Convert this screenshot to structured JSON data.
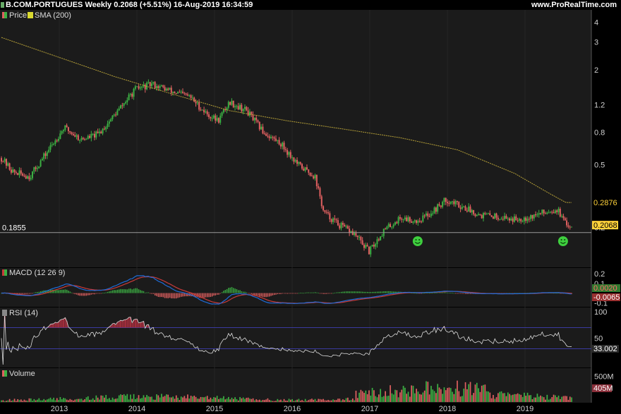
{
  "header": {
    "title": "B.COM.PORTUGUES Weekly 0.2068 (+5.51%) 16-Aug-2019 16:34:59",
    "site": "www.ProRealTime.com"
  },
  "colors": {
    "background": "#000000",
    "panel": "#1b1b1b",
    "up": "#3cb043",
    "down": "#e06060",
    "sma": "#b8a238",
    "macd_line": "#1f6bd6",
    "signal_line": "#c83a3a",
    "rsi_line": "#dddddd",
    "price_label_bg": "#ffd23a"
  },
  "chart_data": {
    "type": "candlestick",
    "x_ticks": [
      "2013",
      "2014",
      "2015",
      "2016",
      "2017",
      "2018",
      "2019"
    ],
    "price_panel": {
      "legend": [
        "Price",
        "SMA (200)"
      ],
      "scale": "log",
      "y_ticks": [
        "4",
        "3",
        "2",
        "1.2",
        "0.8",
        "0.5",
        "0.2"
      ],
      "y_range": [
        0.12,
        4.5
      ],
      "price_anchor": [
        [
          0,
          0.55
        ],
        [
          0.02,
          0.45
        ],
        [
          0.05,
          0.42
        ],
        [
          0.08,
          0.6
        ],
        [
          0.11,
          0.86
        ],
        [
          0.14,
          0.72
        ],
        [
          0.17,
          0.78
        ],
        [
          0.2,
          1.05
        ],
        [
          0.235,
          1.5
        ],
        [
          0.265,
          1.62
        ],
        [
          0.3,
          1.45
        ],
        [
          0.33,
          1.35
        ],
        [
          0.36,
          1.05
        ],
        [
          0.38,
          0.95
        ],
        [
          0.4,
          1.25
        ],
        [
          0.43,
          1.1
        ],
        [
          0.46,
          0.8
        ],
        [
          0.49,
          0.68
        ],
        [
          0.52,
          0.5
        ],
        [
          0.55,
          0.42
        ],
        [
          0.565,
          0.25
        ],
        [
          0.59,
          0.21
        ],
        [
          0.62,
          0.18
        ],
        [
          0.645,
          0.14
        ],
        [
          0.67,
          0.19
        ],
        [
          0.7,
          0.23
        ],
        [
          0.73,
          0.22
        ],
        [
          0.755,
          0.25
        ],
        [
          0.78,
          0.3
        ],
        [
          0.81,
          0.27
        ],
        [
          0.84,
          0.24
        ],
        [
          0.87,
          0.235
        ],
        [
          0.9,
          0.225
        ],
        [
          0.93,
          0.235
        ],
        [
          0.96,
          0.255
        ],
        [
          0.975,
          0.26
        ],
        [
          0.99,
          0.2068
        ]
      ],
      "sma_anchor": [
        [
          0,
          3.2
        ],
        [
          0.1,
          2.4
        ],
        [
          0.2,
          1.8
        ],
        [
          0.3,
          1.4
        ],
        [
          0.4,
          1.1
        ],
        [
          0.5,
          0.95
        ],
        [
          0.6,
          0.84
        ],
        [
          0.7,
          0.74
        ],
        [
          0.8,
          0.62
        ],
        [
          0.9,
          0.44
        ],
        [
          0.96,
          0.33
        ],
        [
          0.99,
          0.2876
        ]
      ],
      "h_line_value": "0.1855",
      "sma_last": "0.2876",
      "price_last": "0.2068",
      "markers_at": [
        0.73,
        0.985
      ]
    },
    "macd_panel": {
      "legend": "MACD (12 26 9)",
      "y_ticks": [
        "0.2",
        "0.1",
        "-0.1"
      ],
      "y_range": [
        -0.12,
        0.23
      ],
      "last_values": [
        "0.0020",
        "-0.0065"
      ]
    },
    "rsi_panel": {
      "legend": "RSI (14)",
      "y_ticks": [
        "100",
        "50"
      ],
      "y_range": [
        0,
        100
      ],
      "overbought": 70,
      "oversold": 30,
      "last_value": "33.002"
    },
    "volume_panel": {
      "legend": "Volume",
      "y_ticks": [
        "500M"
      ],
      "y_range": [
        0,
        600
      ],
      "last_value": "405M"
    }
  }
}
